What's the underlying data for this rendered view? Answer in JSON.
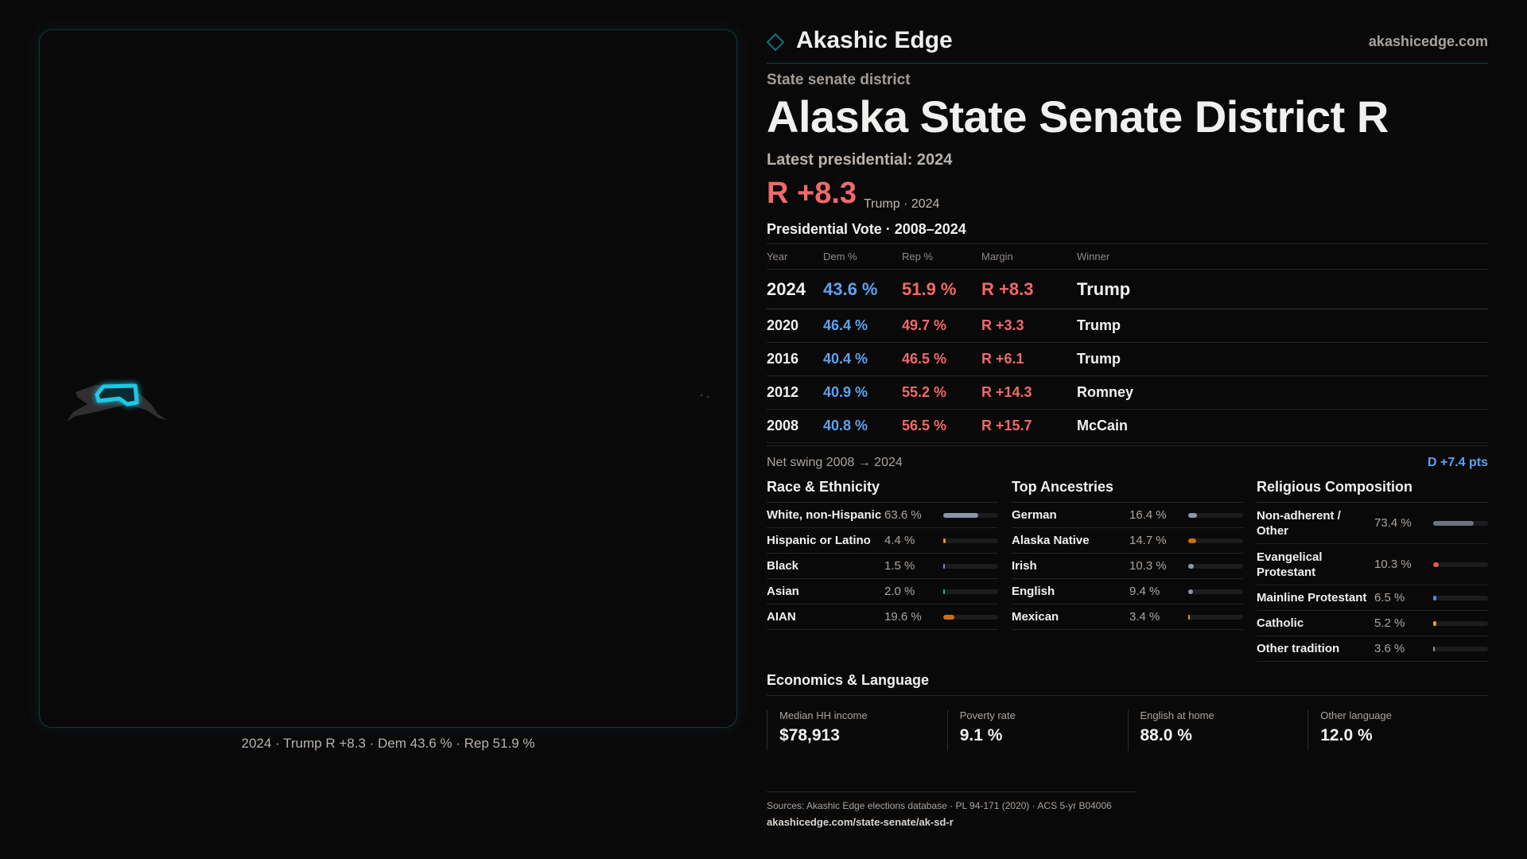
{
  "header": {
    "brand": "Akashic Edge",
    "site": "akashicedge.com"
  },
  "map": {
    "caption": "2024 · Trump R +8.3 · Dem 43.6 % · Rep 51.9 %",
    "highlight_color": "#1ec8e6"
  },
  "district": {
    "type": "State senate district",
    "title": "Alaska State Senate District R",
    "latest": "Latest presidential: 2024",
    "margin": "R +8.3",
    "margin_sub": "Trump · 2024"
  },
  "presidential": {
    "title": "Presidential Vote · 2008–2024",
    "columns": [
      "Year",
      "Dem %",
      "Rep %",
      "Margin",
      "Winner"
    ],
    "rows": [
      {
        "year": "2024",
        "dem": "43.6 %",
        "rep": "51.9 %",
        "margin": "R +8.3",
        "winner": "Trump"
      },
      {
        "year": "2020",
        "dem": "46.4 %",
        "rep": "49.7 %",
        "margin": "R +3.3",
        "winner": "Trump"
      },
      {
        "year": "2016",
        "dem": "40.4 %",
        "rep": "46.5 %",
        "margin": "R +6.1",
        "winner": "Trump"
      },
      {
        "year": "2012",
        "dem": "40.9 %",
        "rep": "55.2 %",
        "margin": "R +14.3",
        "winner": "Romney"
      },
      {
        "year": "2008",
        "dem": "40.8 %",
        "rep": "56.5 %",
        "margin": "R +15.7",
        "winner": "McCain"
      }
    ]
  },
  "swing": {
    "label": "Net swing 2008 → 2024",
    "value": "D +7.4 pts"
  },
  "race": {
    "title": "Race & Ethnicity",
    "items": [
      {
        "label": "White, non-Hispanic",
        "value": "63.6 %",
        "pct": 63.6,
        "color": "#8a96aa"
      },
      {
        "label": "Hispanic or Latino",
        "value": "4.4 %",
        "pct": 4.4,
        "color": "#d99a1e"
      },
      {
        "label": "Black",
        "value": "1.5 %",
        "pct": 1.5,
        "color": "#8a78d8"
      },
      {
        "label": "Asian",
        "value": "2.0 %",
        "pct": 2.0,
        "color": "#2fb88a"
      },
      {
        "label": "AIAN",
        "value": "19.6 %",
        "pct": 19.6,
        "color": "#c8700a"
      }
    ]
  },
  "ancestry": {
    "title": "Top Ancestries",
    "items": [
      {
        "label": "German",
        "value": "16.4 %",
        "pct": 16.4,
        "color": "#8a96aa"
      },
      {
        "label": "Alaska Native",
        "value": "14.7 %",
        "pct": 14.7,
        "color": "#c8700a"
      },
      {
        "label": "Irish",
        "value": "10.3 %",
        "pct": 10.3,
        "color": "#8a96aa"
      },
      {
        "label": "English",
        "value": "9.4 %",
        "pct": 9.4,
        "color": "#8a96aa"
      },
      {
        "label": "Mexican",
        "value": "3.4 %",
        "pct": 3.4,
        "color": "#d99a1e"
      }
    ]
  },
  "religion": {
    "title": "Religious Composition",
    "items": [
      {
        "label": "Non-adherent / Other",
        "value": "73.4 %",
        "pct": 73.4,
        "color": "#6e7480"
      },
      {
        "label": "Evangelical Protestant",
        "value": "10.3 %",
        "pct": 10.3,
        "color": "#e05a5a"
      },
      {
        "label": "Mainline Protestant",
        "value": "6.5 %",
        "pct": 6.5,
        "color": "#4a8ee0"
      },
      {
        "label": "Catholic",
        "value": "5.2 %",
        "pct": 5.2,
        "color": "#e0a81e"
      },
      {
        "label": "Other tradition",
        "value": "3.6 %",
        "pct": 3.6,
        "color": "#8a96aa"
      }
    ]
  },
  "economics": {
    "title": "Economics & Language",
    "items": [
      {
        "label": "Median HH income",
        "value": "$78,913"
      },
      {
        "label": "Poverty rate",
        "value": "9.1 %"
      },
      {
        "label": "English at home",
        "value": "88.0 %"
      },
      {
        "label": "Other language",
        "value": "12.0 %"
      }
    ]
  },
  "footer": {
    "sources": "Sources: Akashic Edge elections database · PL 94-171 (2020) · ACS 5-yr B04006",
    "url": "akashicedge.com/state-senate/ak-sd-r"
  }
}
